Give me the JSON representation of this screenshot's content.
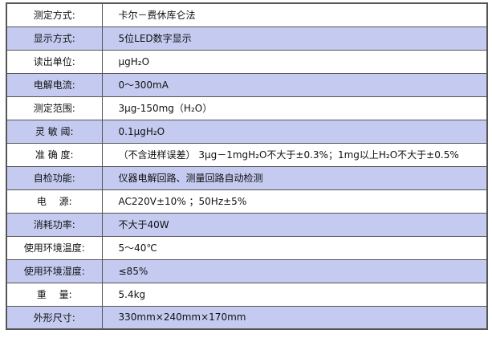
{
  "colors": {
    "alt_row": "#c5cbf0",
    "border": "#555555"
  },
  "specs": [
    {
      "label": "测定方式:",
      "value": "卡尔－费休库仑法"
    },
    {
      "label": "显示方式:",
      "value": "5位LED数字显示"
    },
    {
      "label": "读出单位:",
      "value": "μgH₂O"
    },
    {
      "label": "电解电流:",
      "value": "0～300mA"
    },
    {
      "label": "测定范围:",
      "value": "3μg-150mg（H₂O）"
    },
    {
      "label": "灵 敏 阈:",
      "value": "0.1μgH₂O"
    },
    {
      "label": "准 确 度:",
      "value": "（不含进样误差） 3μg－1mgH₂O不大于±0.3%；1mg以上H₂O不大于±0.5%"
    },
    {
      "label": "自检功能:",
      "value": "仪器电解回路、测量回路自动检测"
    },
    {
      "label": "电　 源:",
      "value": "AC220V±10% ；50Hz±5%"
    },
    {
      "label": "消耗功率:",
      "value": "不大于40W"
    },
    {
      "label": "使用环境温度:",
      "value": "5～40℃"
    },
    {
      "label": "使用环境湿度:",
      "value": "≤85%"
    },
    {
      "label": "重　 量:",
      "value": "5.4kg"
    },
    {
      "label": "外形尺寸:",
      "value": "330mm×240mm×170mm"
    }
  ]
}
